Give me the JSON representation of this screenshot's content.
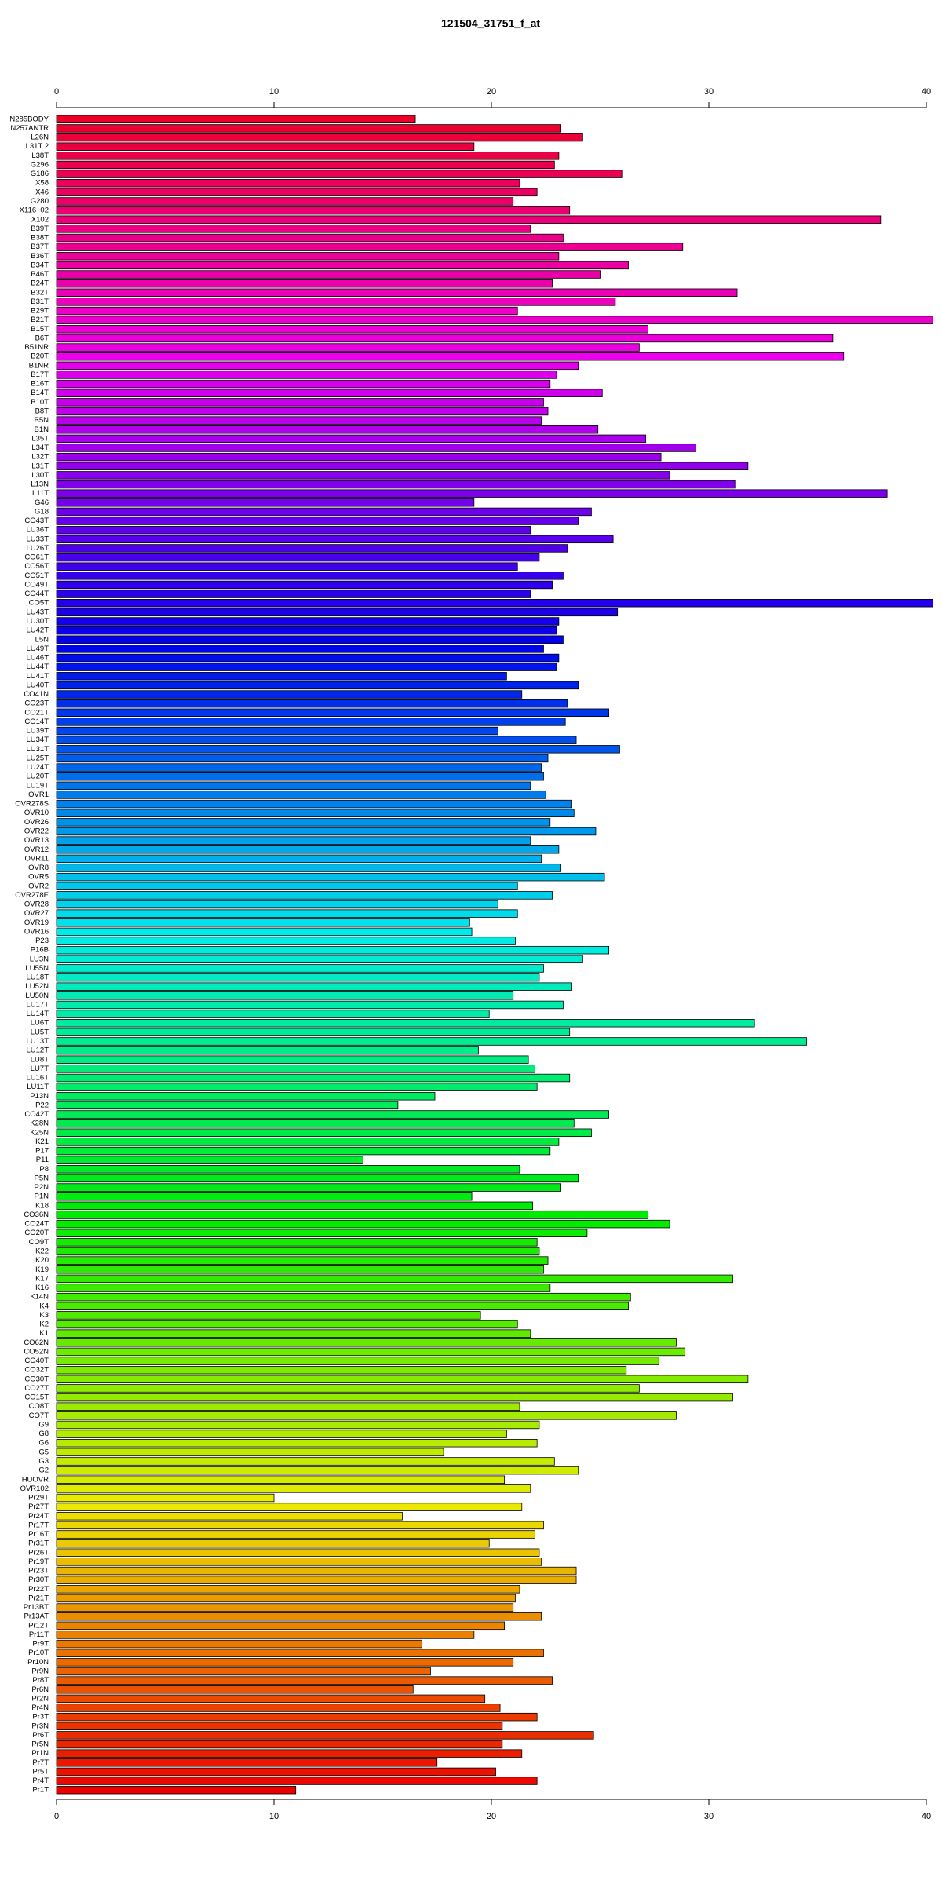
{
  "chart_data": {
    "type": "bar",
    "orientation": "horizontal",
    "title": "121504_31751_f_at",
    "categories": [
      "N285BODY",
      "N257ANTR",
      "L26N",
      "L31T 2",
      "L38T",
      "G296",
      "G186",
      "X58",
      "X46",
      "G280",
      "X116_02",
      "X102",
      "B39T",
      "B38T",
      "B37T",
      "B36T",
      "B34T",
      "B46T",
      "B24T",
      "B32T",
      "B31T",
      "B29T",
      "B21T",
      "B15T",
      "B6T",
      "B51NR",
      "B20T",
      "B1NR",
      "B17T",
      "B16T",
      "B14T",
      "B10T",
      "B8T",
      "B5N",
      "B1N",
      "L35T",
      "L34T",
      "L32T",
      "L31T",
      "L30T",
      "L13N",
      "L11T",
      "G46",
      "G18",
      "CO43T",
      "LU36T",
      "LU33T",
      "LU26T",
      "CO61T",
      "CO56T",
      "CO51T",
      "CO49T",
      "CO44T",
      "CO5T",
      "LU43T",
      "LU30T",
      "LU42T",
      "L5N",
      "LU49T",
      "LU46T",
      "LU44T",
      "LU41T",
      "LU40T",
      "CO41N",
      "CO23T",
      "CO21T",
      "CO14T",
      "LU39T",
      "LU34T",
      "LU31T",
      "LU25T",
      "LU24T",
      "LU20T",
      "LU19T",
      "OVR1",
      "OVR278S",
      "OVR10",
      "OVR26",
      "OVR22",
      "OVR13",
      "OVR12",
      "OVR11",
      "OVR8",
      "OVR5",
      "OVR2",
      "OVR278E",
      "OVR28",
      "OVR27",
      "OVR19",
      "OVR16",
      "P23",
      "P16B",
      "LU3N",
      "LU55N",
      "LU18T",
      "LU52N",
      "LU50N",
      "LU17T",
      "LU14T",
      "LU6T",
      "LU5T",
      "LU13T",
      "LU12T",
      "LU8T",
      "LU7T",
      "LU16T",
      "LU11T",
      "P13N",
      "P22",
      "CO42T",
      "K28N",
      "K25N",
      "K21",
      "P17",
      "P11",
      "P8",
      "P5N",
      "P2N",
      "P1N",
      "K18",
      "CO36N",
      "CO24T",
      "CO20T",
      "CO9T",
      "K22",
      "K20",
      "K19",
      "K17",
      "K16",
      "K14N",
      "K4",
      "K3",
      "K2",
      "K1",
      "CO62N",
      "CO52N",
      "CO40T",
      "CO32T",
      "CO30T",
      "CO27T",
      "CO15T",
      "CO8T",
      "CO7T",
      "G9",
      "G8",
      "G6",
      "G5",
      "G3",
      "G2",
      "HUOVR",
      "OVR102",
      "Pr29T",
      "Pr27T",
      "Pr24T",
      "Pr17T",
      "Pr16T",
      "Pr31T",
      "Pr26T",
      "Pr19T",
      "Pr23T",
      "Pr30T",
      "Pr22T",
      "Pr21T",
      "Pr13BT",
      "Pr13AT",
      "Pr12T",
      "Pr11T",
      "Pr9T",
      "Pr10T",
      "Pr10N",
      "Pr9N",
      "Pr8T",
      "Pr6N",
      "Pr2N",
      "Pr4N",
      "Pr3T",
      "Pr3N",
      "Pr6T",
      "Pr5N",
      "Pr1N",
      "Pr7T",
      "Pr5T",
      "Pr4T",
      "Pr1T"
    ],
    "values": [
      16.5,
      23.2,
      24.2,
      19.2,
      23.1,
      22.9,
      26.0,
      21.3,
      22.1,
      21.0,
      23.6,
      37.9,
      21.8,
      23.3,
      28.8,
      23.1,
      26.3,
      25.0,
      22.8,
      31.3,
      25.7,
      21.2,
      40.3,
      27.2,
      35.7,
      26.8,
      36.2,
      24.0,
      23.0,
      22.7,
      25.1,
      22.4,
      22.6,
      22.3,
      24.9,
      27.1,
      29.4,
      27.8,
      31.8,
      28.2,
      31.2,
      38.2,
      19.2,
      24.6,
      24.0,
      21.8,
      25.6,
      23.5,
      22.2,
      21.2,
      23.3,
      22.8,
      21.8,
      40.3,
      25.8,
      23.1,
      23.0,
      23.3,
      22.4,
      23.1,
      23.0,
      20.7,
      24.0,
      21.4,
      23.5,
      25.4,
      23.4,
      20.3,
      23.9,
      25.9,
      22.6,
      22.3,
      22.4,
      21.8,
      22.5,
      23.7,
      23.8,
      22.7,
      24.8,
      21.8,
      23.1,
      22.3,
      23.2,
      25.2,
      21.2,
      22.8,
      20.3,
      21.2,
      19.0,
      19.1,
      21.1,
      25.4,
      24.2,
      22.4,
      22.2,
      23.7,
      21.0,
      23.3,
      19.9,
      32.1,
      23.6,
      34.5,
      19.4,
      21.7,
      22.0,
      23.6,
      22.1,
      17.4,
      15.7,
      25.4,
      23.8,
      24.6,
      23.1,
      22.7,
      14.1,
      21.3,
      24.0,
      23.2,
      19.1,
      21.9,
      27.2,
      28.2,
      24.4,
      22.1,
      22.2,
      22.6,
      22.4,
      31.1,
      22.7,
      26.4,
      26.3,
      19.5,
      21.2,
      21.8,
      28.5,
      28.9,
      27.7,
      26.2,
      31.8,
      26.8,
      31.1,
      21.3,
      28.5,
      22.2,
      20.7,
      22.1,
      17.8,
      22.9,
      24.0,
      20.6,
      21.8,
      10.0,
      21.4,
      15.9,
      22.4,
      22.0,
      19.9,
      22.2,
      22.3,
      23.9,
      23.9,
      21.3,
      21.1,
      21.0,
      22.3,
      20.6,
      19.2,
      16.8,
      22.4,
      21.0,
      17.2,
      22.8,
      16.4,
      19.7,
      20.4,
      22.1,
      20.5,
      24.7,
      20.5,
      21.4,
      17.5,
      20.2,
      22.1,
      11.0
    ],
    "colors": [
      "hsl(350,100%,46%)",
      "hsl(348,100%,46%)",
      "hsl(346,100%,46%)",
      "hsl(344,100%,46%)",
      "hsl(342,100%,46%)",
      "hsl(340,100%,46%)",
      "hsl(339,100%,46%)",
      "hsl(337,100%,46%)",
      "hsl(335,100%,46%)",
      "hsl(333,100%,46%)",
      "hsl(331,100%,46%)",
      "hsl(329,100%,46%)",
      "hsl(327,100%,46%)",
      "hsl(325,100%,46%)",
      "hsl(323,100%,46%)",
      "hsl(321,100%,46%)",
      "hsl(319,100%,46%)",
      "hsl(317,100%,46%)",
      "hsl(316,100%,46%)",
      "hsl(314,100%,46%)",
      "hsl(312,100%,46%)",
      "hsl(310,100%,46%)",
      "hsl(308,100%,46%)",
      "hsl(306,100%,46%)",
      "hsl(304,100%,46%)",
      "hsl(302,100%,46%)",
      "hsl(300,100%,46%)",
      "hsl(298,100%,46%)",
      "hsl(296,100%,46%)",
      "hsl(295,100%,46%)",
      "hsl(293,100%,46%)",
      "hsl(291,100%,46%)",
      "hsl(289,100%,46%)",
      "hsl(287,100%,46%)",
      "hsl(285,100%,46%)",
      "hsl(283,100%,46%)",
      "hsl(281,100%,46%)",
      "hsl(279,100%,46%)",
      "hsl(277,100%,46%)",
      "hsl(275,100%,46%)",
      "hsl(273,100%,46%)",
      "hsl(272,100%,46%)",
      "hsl(270,100%,46%)",
      "hsl(268,100%,46%)",
      "hsl(266,100%,46%)",
      "hsl(264,100%,46%)",
      "hsl(262,100%,46%)",
      "hsl(260,100%,46%)",
      "hsl(258,100%,46%)",
      "hsl(256,100%,46%)",
      "hsl(254,100%,46%)",
      "hsl(252,100%,46%)",
      "hsl(251,100%,46%)",
      "hsl(249,100%,46%)",
      "hsl(247,100%,46%)",
      "hsl(245,100%,46%)",
      "hsl(243,100%,46%)",
      "hsl(241,100%,46%)",
      "hsl(239,100%,46%)",
      "hsl(237,100%,46%)",
      "hsl(235,100%,46%)",
      "hsl(233,100%,46%)",
      "hsl(231,100%,46%)",
      "hsl(230,100%,46%)",
      "hsl(228,100%,46%)",
      "hsl(226,100%,46%)",
      "hsl(224,100%,46%)",
      "hsl(222,100%,46%)",
      "hsl(220,100%,46%)",
      "hsl(218,100%,46%)",
      "hsl(216,100%,46%)",
      "hsl(214,100%,46%)",
      "hsl(212,100%,46%)",
      "hsl(210,100%,46%)",
      "hsl(208,100%,46%)",
      "hsl(207,100%,46%)",
      "hsl(205,100%,46%)",
      "hsl(203,100%,46%)",
      "hsl(201,100%,46%)",
      "hsl(199,100%,46%)",
      "hsl(197,100%,46%)",
      "hsl(195,100%,46%)",
      "hsl(193,100%,46%)",
      "hsl(191,100%,46%)",
      "hsl(189,100%,46%)",
      "hsl(187,100%,46%)",
      "hsl(186,100%,46%)",
      "hsl(184,100%,46%)",
      "hsl(182,100%,46%)",
      "hsl(180,100%,46%)",
      "hsl(178,100%,46%)",
      "hsl(176,100%,46%)",
      "hsl(174,100%,46%)",
      "hsl(172,100%,46%)",
      "hsl(170,100%,46%)",
      "hsl(168,100%,46%)",
      "hsl(166,100%,46%)",
      "hsl(164,100%,46%)",
      "hsl(163,100%,46%)",
      "hsl(161,100%,46%)",
      "hsl(159,100%,46%)",
      "hsl(157,100%,46%)",
      "hsl(155,100%,46%)",
      "hsl(153,100%,46%)",
      "hsl(151,100%,46%)",
      "hsl(149,100%,46%)",
      "hsl(147,100%,46%)",
      "hsl(145,100%,46%)",
      "hsl(143,100%,46%)",
      "hsl(142,100%,46%)",
      "hsl(140,100%,46%)",
      "hsl(138,100%,46%)",
      "hsl(136,100%,46%)",
      "hsl(134,100%,46%)",
      "hsl(132,100%,46%)",
      "hsl(130,100%,46%)",
      "hsl(128,100%,46%)",
      "hsl(126,100%,46%)",
      "hsl(124,100%,46%)",
      "hsl(122,100%,46%)",
      "hsl(120,100%,46%)",
      "hsl(119,100%,46%)",
      "hsl(117,100%,46%)",
      "hsl(115,100%,46%)",
      "hsl(113,100%,46%)",
      "hsl(111,100%,46%)",
      "hsl(109,100%,46%)",
      "hsl(107,100%,46%)",
      "hsl(105,100%,46%)",
      "hsl(103,100%,46%)",
      "hsl(101,100%,46%)",
      "hsl(99,100%,46%)",
      "hsl(98,100%,46%)",
      "hsl(96,100%,46%)",
      "hsl(94,100%,46%)",
      "hsl(92,100%,46%)",
      "hsl(90,100%,46%)",
      "hsl(88,100%,46%)",
      "hsl(86,100%,46%)",
      "hsl(84,100%,46%)",
      "hsl(82,100%,46%)",
      "hsl(80,100%,46%)",
      "hsl(78,100%,46%)",
      "hsl(77,100%,46%)",
      "hsl(75,100%,46%)",
      "hsl(73,100%,46%)",
      "hsl(71,100%,46%)",
      "hsl(69,100%,46%)",
      "hsl(67,100%,46%)",
      "hsl(65,100%,46%)",
      "hsl(63,100%,46%)",
      "hsl(61,100%,46%)",
      "hsl(59,100%,46%)",
      "hsl(57,100%,46%)",
      "hsl(55,100%,46%)",
      "hsl(54,100%,46%)",
      "hsl(52,100%,46%)",
      "hsl(50,100%,46%)",
      "hsl(48,100%,46%)",
      "hsl(46,100%,46%)",
      "hsl(44,100%,46%)",
      "hsl(42,100%,46%)",
      "hsl(40,100%,46%)",
      "hsl(38,100%,46%)",
      "hsl(36,100%,46%)",
      "hsl(34,100%,46%)",
      "hsl(33,100%,46%)",
      "hsl(31,100%,46%)",
      "hsl(29,100%,46%)",
      "hsl(27,100%,46%)",
      "hsl(25,100%,46%)",
      "hsl(23,100%,46%)",
      "hsl(21,100%,46%)",
      "hsl(19,100%,46%)",
      "hsl(17,100%,46%)",
      "hsl(15,100%,46%)",
      "hsl(13,100%,46%)",
      "hsl(11,100%,46%)",
      "hsl(10,100%,46%)",
      "hsl(8,100%,46%)",
      "hsl(6,100%,46%)",
      "hsl(4,100%,46%)",
      "hsl(2,100%,46%)",
      "hsl(0,100%,46%)"
    ],
    "xlim": [
      0,
      40.3
    ],
    "xticks": [
      0,
      10,
      20,
      30,
      40
    ],
    "grid": false
  }
}
